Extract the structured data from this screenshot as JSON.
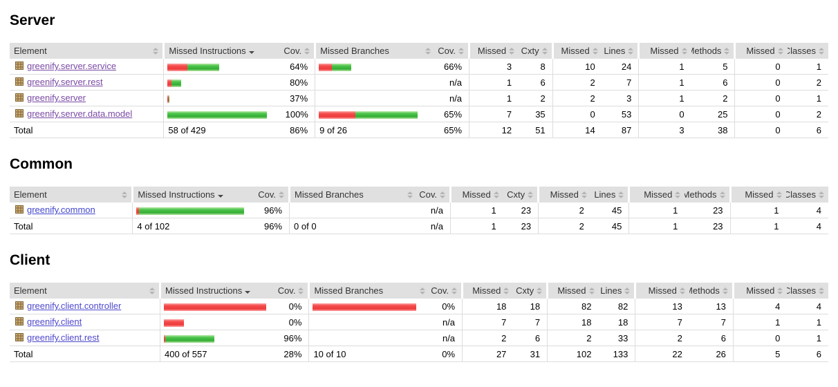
{
  "report": {
    "columns": [
      "Element",
      "Missed Instructions",
      "Cov.",
      "Missed Branches",
      "Cov.",
      "Missed",
      "Cxty",
      "Missed",
      "Lines",
      "Missed",
      "Methods",
      "Missed",
      "Classes"
    ],
    "sorted_column": "Missed Instructions",
    "sort_direction": "desc",
    "colors": {
      "bar_red": "#ee3a3a",
      "bar_green": "#35ad35",
      "header_bg": "#e0e0e0",
      "server_link": "#7a4aa5",
      "common_link": "#4347cd",
      "client_link": "#4f49cc"
    },
    "icons": {
      "package": "package-icon",
      "sort": "sort-arrows-icon",
      "sort_desc": "sort-arrow-down-icon"
    },
    "sections": [
      {
        "title": "Server",
        "link_color": "#7a4aa5",
        "rows": [
          {
            "name": "greenify.server.service",
            "instr_bar": {
              "red": 29,
              "green": 46
            },
            "instr_cov": "64%",
            "branch_bar": {
              "red": 19,
              "green": 28
            },
            "branch_cov": "66%",
            "missed_cxty": "3",
            "cxty": "8",
            "missed_lines": "10",
            "lines": "24",
            "missed_methods": "1",
            "methods": "5",
            "missed_classes": "0",
            "classes": "1"
          },
          {
            "name": "greenify.server.rest",
            "instr_bar": {
              "red": 6,
              "green": 14
            },
            "instr_cov": "80%",
            "branch_bar": {
              "red": 0,
              "green": 0
            },
            "branch_cov": "n/a",
            "missed_cxty": "1",
            "cxty": "6",
            "missed_lines": "2",
            "lines": "7",
            "missed_methods": "1",
            "methods": "6",
            "missed_classes": "0",
            "classes": "2"
          },
          {
            "name": "greenify.server",
            "instr_bar": {
              "red": 2,
              "green": 1
            },
            "instr_cov": "37%",
            "branch_bar": {
              "red": 0,
              "green": 0
            },
            "branch_cov": "n/a",
            "missed_cxty": "1",
            "cxty": "2",
            "missed_lines": "2",
            "lines": "3",
            "missed_methods": "1",
            "methods": "2",
            "missed_classes": "0",
            "classes": "1"
          },
          {
            "name": "greenify.server.data.model",
            "instr_bar": {
              "red": 0,
              "green": 144
            },
            "instr_cov": "100%",
            "branch_bar": {
              "red": 53,
              "green": 90
            },
            "branch_cov": "65%",
            "missed_cxty": "7",
            "cxty": "35",
            "missed_lines": "0",
            "lines": "53",
            "missed_methods": "0",
            "methods": "25",
            "missed_classes": "0",
            "classes": "2"
          }
        ],
        "total": {
          "label": "Total",
          "instr": "58 of 429",
          "instr_cov": "86%",
          "branch": "9 of 26",
          "branch_cov": "65%",
          "missed_cxty": "12",
          "cxty": "51",
          "missed_lines": "14",
          "lines": "87",
          "missed_methods": "3",
          "methods": "38",
          "missed_classes": "0",
          "classes": "6"
        }
      },
      {
        "title": "Common",
        "link_color": "#4347cd",
        "rows": [
          {
            "name": "greenify.common",
            "instr_bar": {
              "red": 4,
              "green": 152
            },
            "instr_cov": "96%",
            "branch_bar": {
              "red": 0,
              "green": 0
            },
            "branch_cov": "n/a",
            "missed_cxty": "1",
            "cxty": "23",
            "missed_lines": "2",
            "lines": "45",
            "missed_methods": "1",
            "methods": "23",
            "missed_classes": "1",
            "classes": "4"
          }
        ],
        "total": {
          "label": "Total",
          "instr": "4 of 102",
          "instr_cov": "96%",
          "branch": "0 of 0",
          "branch_cov": "n/a",
          "missed_cxty": "1",
          "cxty": "23",
          "missed_lines": "2",
          "lines": "45",
          "missed_methods": "1",
          "methods": "23",
          "missed_classes": "1",
          "classes": "4"
        }
      },
      {
        "title": "Client",
        "link_color": "#4f49cc",
        "rows": [
          {
            "name": "greenify.client.controller",
            "instr_bar": {
              "red": 148,
              "green": 0
            },
            "instr_cov": "0%",
            "branch_bar": {
              "red": 150,
              "green": 0
            },
            "branch_cov": "0%",
            "missed_cxty": "18",
            "cxty": "18",
            "missed_lines": "82",
            "lines": "82",
            "missed_methods": "13",
            "methods": "13",
            "missed_classes": "4",
            "classes": "4"
          },
          {
            "name": "greenify.client",
            "instr_bar": {
              "red": 29,
              "green": 0
            },
            "instr_cov": "0%",
            "branch_bar": {
              "red": 0,
              "green": 0
            },
            "branch_cov": "n/a",
            "missed_cxty": "7",
            "cxty": "7",
            "missed_lines": "18",
            "lines": "18",
            "missed_methods": "7",
            "methods": "7",
            "missed_classes": "1",
            "classes": "1"
          },
          {
            "name": "greenify.client.rest",
            "instr_bar": {
              "red": 2,
              "green": 71
            },
            "instr_cov": "96%",
            "branch_bar": {
              "red": 0,
              "green": 0
            },
            "branch_cov": "n/a",
            "missed_cxty": "2",
            "cxty": "6",
            "missed_lines": "2",
            "lines": "33",
            "missed_methods": "2",
            "methods": "6",
            "missed_classes": "0",
            "classes": "1"
          }
        ],
        "total": {
          "label": "Total",
          "instr": "400 of 557",
          "instr_cov": "28%",
          "branch": "10 of 10",
          "branch_cov": "0%",
          "missed_cxty": "27",
          "cxty": "31",
          "missed_lines": "102",
          "lines": "133",
          "missed_methods": "22",
          "methods": "26",
          "missed_classes": "5",
          "classes": "6"
        }
      }
    ]
  }
}
